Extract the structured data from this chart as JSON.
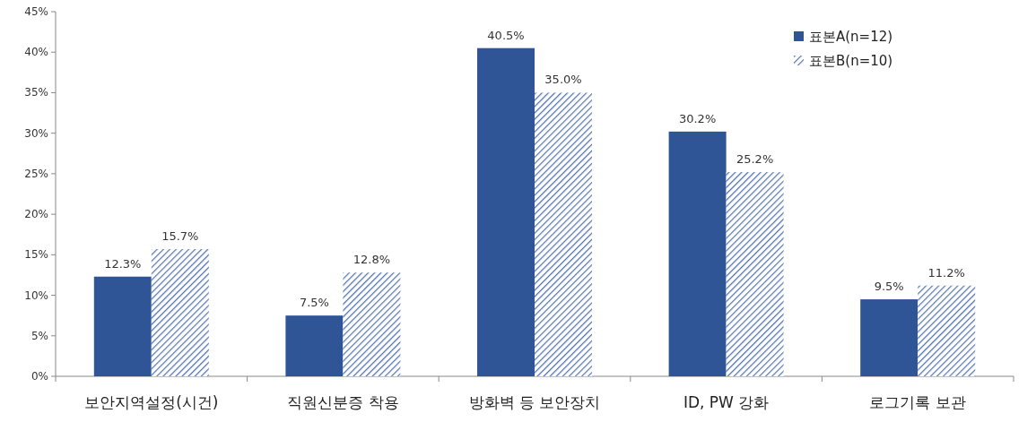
{
  "chart_data": {
    "type": "bar",
    "categories": [
      "보안지역설정(시건)",
      "직원신분증 착용",
      "방화벽 등 보안장치",
      "ID, PW 강화",
      "로그기록 보관"
    ],
    "series": [
      {
        "name": "표본A(n=12)",
        "color": "#2f5597",
        "values": [
          12.3,
          7.5,
          40.5,
          30.2,
          9.5
        ],
        "value_labels": [
          "12.3%",
          "7.5%",
          "40.5%",
          "30.2%",
          "9.5%"
        ]
      },
      {
        "name": "표본B(n=10)",
        "color": "#4f6fae",
        "values": [
          15.7,
          12.8,
          35.0,
          25.2,
          11.2
        ],
        "value_labels": [
          "15.7%",
          "12.8%",
          "35.0%",
          "25.2%",
          "11.2%"
        ]
      }
    ],
    "ylim": [
      0,
      45
    ],
    "yticks": [
      {
        "value": 0,
        "label": "0%"
      },
      {
        "value": 5,
        "label": "5%"
      },
      {
        "value": 10,
        "label": "10%"
      },
      {
        "value": 15,
        "label": "15%"
      },
      {
        "value": 20,
        "label": "20%"
      },
      {
        "value": 25,
        "label": "25%"
      },
      {
        "value": 30,
        "label": "30%"
      },
      {
        "value": 35,
        "label": "35%"
      },
      {
        "value": 40,
        "label": "40%"
      },
      {
        "value": 45,
        "label": "45%"
      }
    ],
    "grid": false,
    "legend": "top right"
  }
}
